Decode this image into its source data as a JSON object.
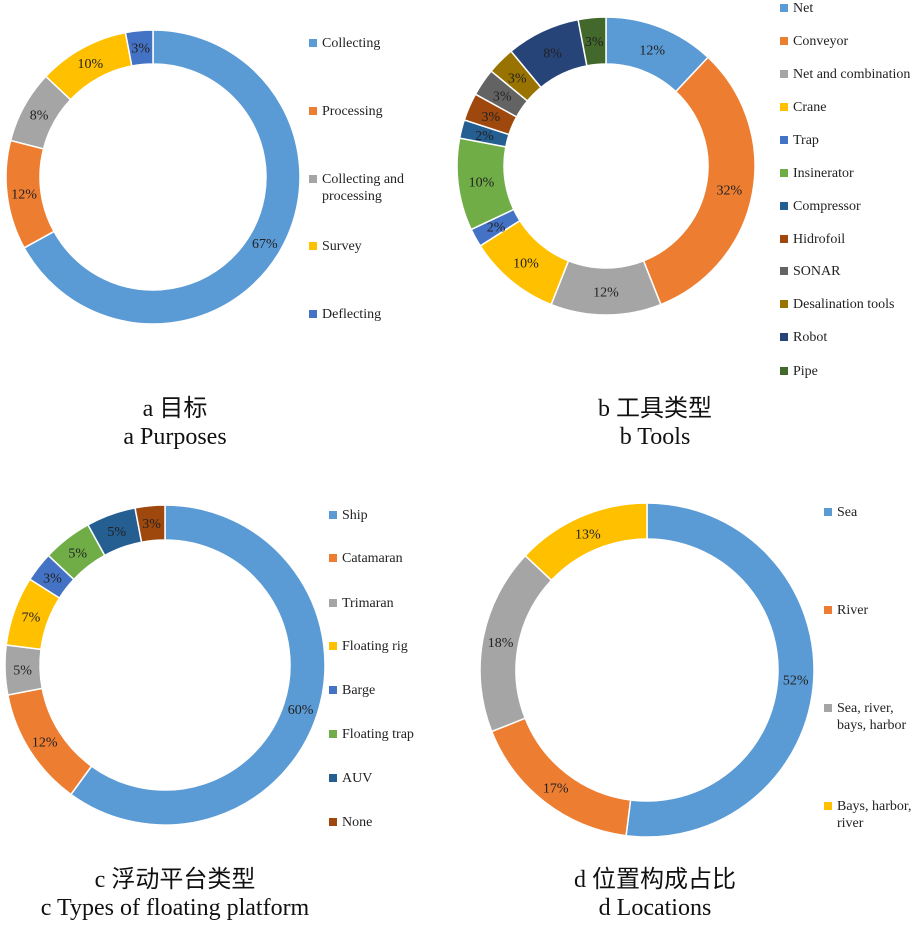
{
  "chart_data": [
    {
      "type": "pie",
      "donut": true,
      "caption_cn": "a 目标",
      "caption_en": "a Purposes",
      "colors": [
        "#5b9bd5",
        "#ed7d31",
        "#a5a5a5",
        "#ffc000",
        "#4472c4"
      ],
      "categories": [
        "Collecting",
        "Processing",
        "Collecting and processing",
        "Survey",
        "Deflecting"
      ],
      "values": [
        67,
        12,
        8,
        10,
        3
      ],
      "value_labels": [
        "67%",
        "12%",
        "8%",
        "10%",
        "3%"
      ],
      "legend_position": "right"
    },
    {
      "type": "pie",
      "donut": true,
      "caption_cn": "b 工具类型",
      "caption_en": "b Tools",
      "colors": [
        "#5b9bd5",
        "#ed7d31",
        "#a5a5a5",
        "#ffc000",
        "#4472c4",
        "#70ad47",
        "#255e91",
        "#9e480e",
        "#636363",
        "#997300",
        "#264478",
        "#43682b"
      ],
      "categories": [
        "Net",
        "Conveyor",
        "Net and combination",
        "Crane",
        "Trap",
        "Insinerator",
        "Compressor",
        "Hidrofoil",
        "SONAR",
        "Desalination tools",
        "Robot",
        "Pipe"
      ],
      "values": [
        12,
        32,
        12,
        10,
        2,
        10,
        2,
        3,
        3,
        3,
        8,
        3
      ],
      "value_labels": [
        "12%",
        "32%",
        "12%",
        "10%",
        "2%",
        "10%",
        "2%",
        "3%",
        "3%",
        "3%",
        "8%",
        "3%"
      ],
      "legend_position": "right"
    },
    {
      "type": "pie",
      "donut": true,
      "caption_cn": "c 浮动平台类型",
      "caption_en": "c Types of floating platform",
      "colors": [
        "#5b9bd5",
        "#ed7d31",
        "#a5a5a5",
        "#ffc000",
        "#4472c4",
        "#70ad47",
        "#255e91",
        "#9e480e"
      ],
      "categories": [
        "Ship",
        "Catamaran",
        "Trimaran",
        "Floating rig",
        "Barge",
        "Floating trap",
        "AUV",
        "None"
      ],
      "values": [
        60,
        12,
        5,
        7,
        3,
        5,
        5,
        3
      ],
      "value_labels": [
        "60%",
        "12%",
        "5%",
        "7%",
        "3%",
        "5%",
        "5%",
        "3%"
      ],
      "legend_position": "right"
    },
    {
      "type": "pie",
      "donut": true,
      "caption_cn": "d 位置构成占比",
      "caption_en": "d Locations",
      "colors": [
        "#5b9bd5",
        "#ed7d31",
        "#a5a5a5",
        "#ffc000"
      ],
      "categories": [
        "Sea",
        "River",
        "Sea, river, bays, harbor",
        "Bays, harbor, river"
      ],
      "values": [
        52,
        17,
        18,
        13
      ],
      "value_labels": [
        "52%",
        "17%",
        "18%",
        "13%"
      ],
      "legend_position": "right"
    }
  ]
}
